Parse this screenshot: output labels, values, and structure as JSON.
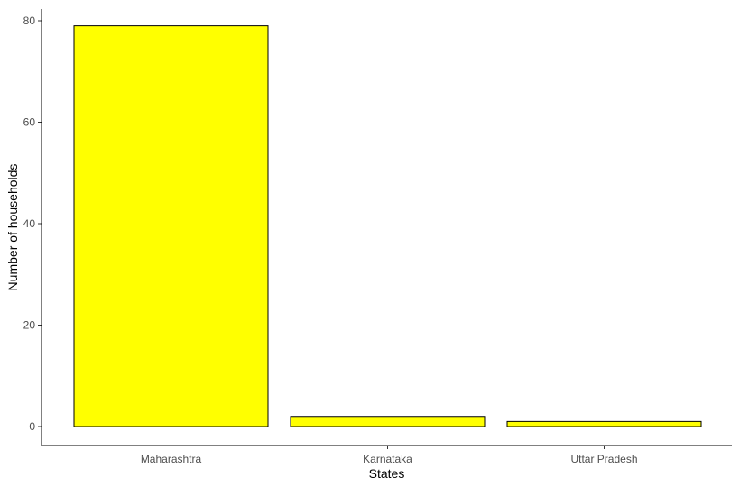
{
  "chart_data": {
    "type": "bar",
    "categories": [
      "Maharashtra",
      "Karnataka",
      "Uttar Pradesh"
    ],
    "values": [
      79,
      2,
      1
    ],
    "xlabel": "States",
    "ylabel": "Number of households",
    "ylim": [
      0,
      80
    ],
    "yticks": [
      0,
      20,
      40,
      60,
      80
    ],
    "grid": false,
    "colors": {
      "bar_fill": "#ffff00",
      "bar_stroke": "#000000"
    }
  }
}
